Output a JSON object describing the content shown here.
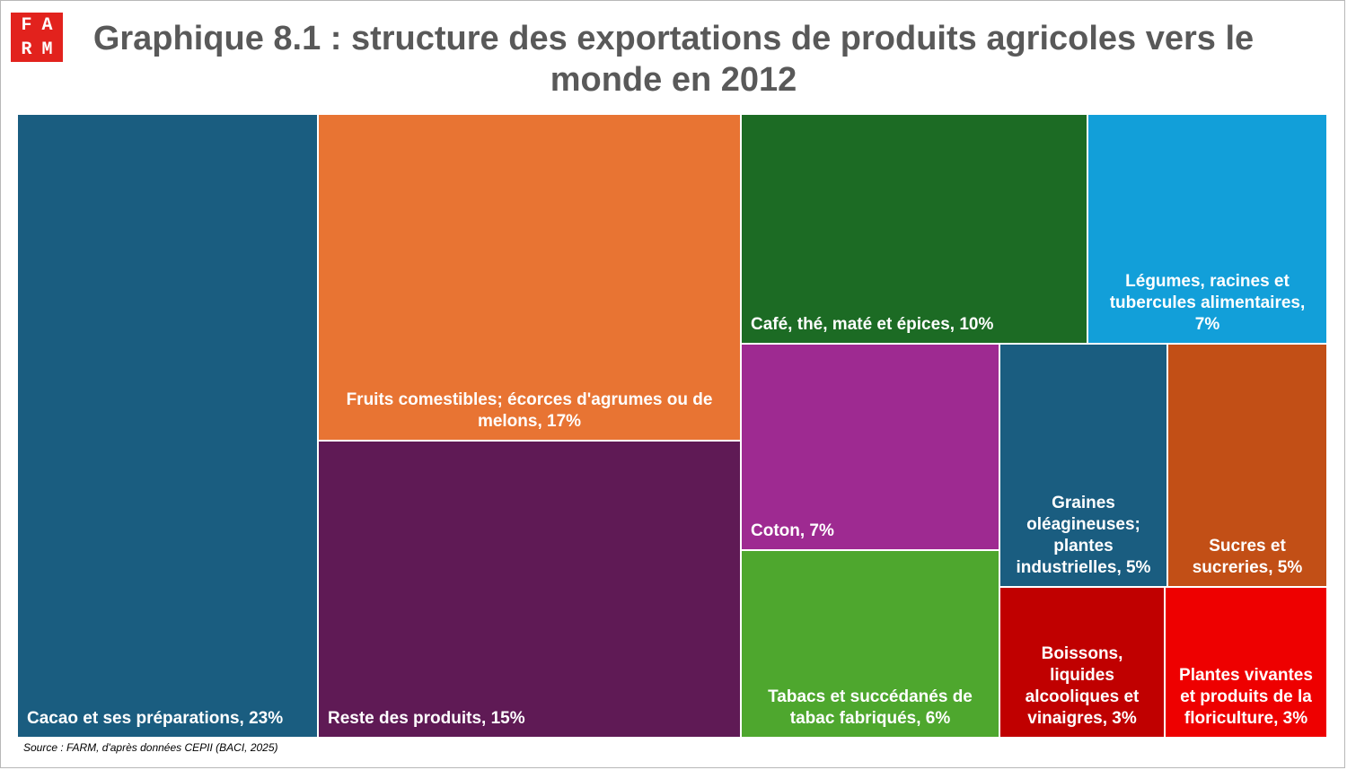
{
  "logo": {
    "letters": [
      "F",
      "A",
      "R",
      "M"
    ]
  },
  "title": "Graphique 8.1 : structure des exportations de produits agricoles vers le monde en 2012",
  "source": "Source : FARM, d'après données CEPII (BACI, 2025)",
  "chart_data": {
    "type": "treemap",
    "title": "Graphique 8.1 : structure des exportations de produits agricoles vers le monde en 2012",
    "unit": "%",
    "items": [
      {
        "label": "Cacao et ses préparations, 23%",
        "name": "Cacao et ses préparations",
        "value": 23,
        "color": "#1a5d80"
      },
      {
        "label": "Fruits comestibles; écorces d'agrumes ou de melons, 17%",
        "name": "Fruits comestibles; écorces d'agrumes ou de melons",
        "value": 17,
        "color": "#e87433"
      },
      {
        "label": "Reste des produits, 15%",
        "name": "Reste des produits",
        "value": 15,
        "color": "#5f1a55"
      },
      {
        "label": "Café, thé, maté et épices, 10%",
        "name": "Café, thé, maté et épices",
        "value": 10,
        "color": "#1c6b24"
      },
      {
        "label": "Légumes, racines et tubercules alimentaires, 7%",
        "name": "Légumes, racines et tubercules alimentaires",
        "value": 7,
        "color": "#129fd9"
      },
      {
        "label": "Coton, 7%",
        "name": "Coton",
        "value": 7,
        "color": "#9e2a91"
      },
      {
        "label": "Graines oléagineuses; plantes industrielles, 5%",
        "name": "Graines oléagineuses; plantes industrielles",
        "value": 5,
        "color": "#1a5d80"
      },
      {
        "label": "Sucres et sucreries, 5%",
        "name": "Sucres et sucreries",
        "value": 5,
        "color": "#c24f16"
      },
      {
        "label": "Tabacs et succédanés de tabac fabriqués, 6%",
        "name": "Tabacs et succédanés de tabac fabriqués",
        "value": 6,
        "color": "#4ea72e"
      },
      {
        "label": "Boissons, liquides alcooliques et vinaigres, 3%",
        "name": "Boissons, liquides alcooliques et vinaigres",
        "value": 3,
        "color": "#c00000"
      },
      {
        "label": "Plantes vivantes et produits de la floriculture, 3%",
        "name": "Plantes vivantes et produits de la floriculture",
        "value": 3,
        "color": "#ee0000"
      }
    ]
  }
}
